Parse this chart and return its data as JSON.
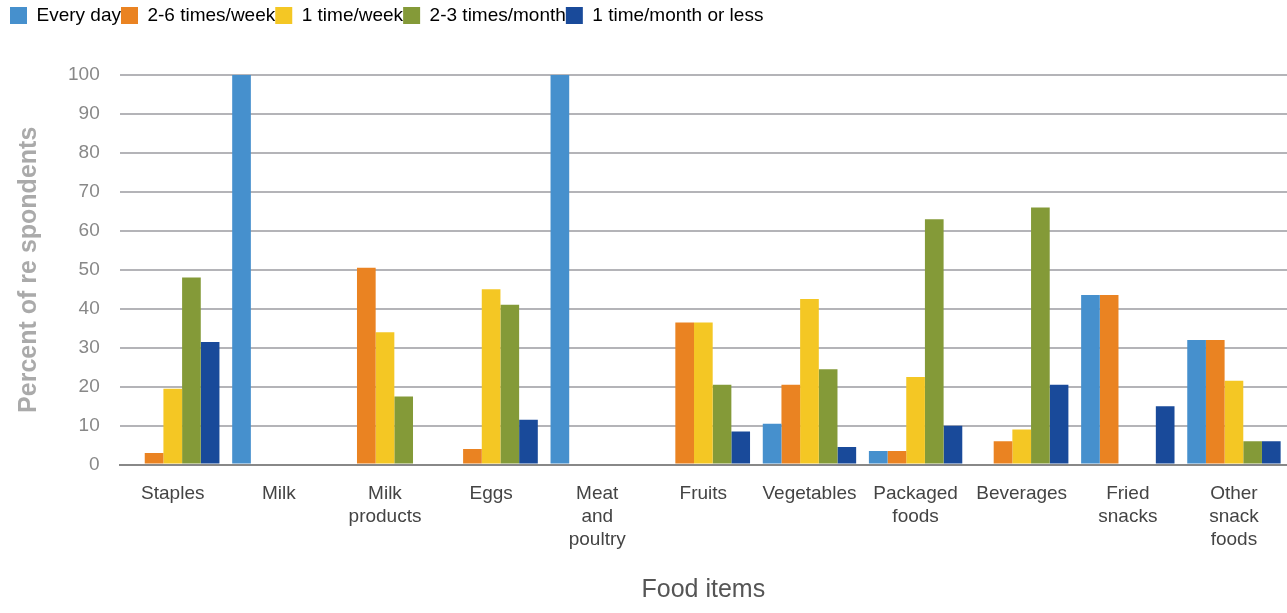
{
  "chart_data": {
    "type": "bar",
    "xlabel": "Food items",
    "ylabel": "Percent of re spondents",
    "categories": [
      "Staples",
      "Milk",
      "Milk products",
      "Eggs",
      "Meat and poultry",
      "Fruits",
      "Vegetables",
      "Packaged foods",
      "Beverages",
      "Fried snacks",
      "Other snack foods"
    ],
    "series": [
      {
        "name": "Every day",
        "color": "#4690cd",
        "values": [
          0,
          100,
          0,
          0,
          100,
          0,
          10.5,
          3.5,
          0,
          43.5,
          32
        ]
      },
      {
        "name": "2-6 times/week",
        "color": "#ea8322",
        "values": [
          3,
          0,
          50.5,
          4,
          0,
          36.5,
          20.5,
          3.5,
          6,
          43.5,
          32
        ]
      },
      {
        "name": "1 time/week",
        "color": "#f4c724",
        "values": [
          19.5,
          0,
          34,
          45,
          0,
          36.5,
          42.5,
          22.5,
          9,
          0,
          21.5
        ]
      },
      {
        "name": "2-3 times/month",
        "color": "#849a38",
        "values": [
          48,
          0,
          17.5,
          41,
          0,
          20.5,
          24.5,
          63,
          66,
          0,
          6
        ]
      },
      {
        "name": "1 time/month or less",
        "color": "#194a9a",
        "values": [
          31.5,
          0,
          0,
          11.5,
          0,
          8.5,
          4.5,
          10,
          20.5,
          15,
          6
        ]
      }
    ],
    "ylim": [
      0,
      100
    ],
    "yticks": [
      0,
      10,
      20,
      30,
      40,
      50,
      60,
      70,
      80,
      90,
      100
    ],
    "grid": "y",
    "legend": "top"
  }
}
